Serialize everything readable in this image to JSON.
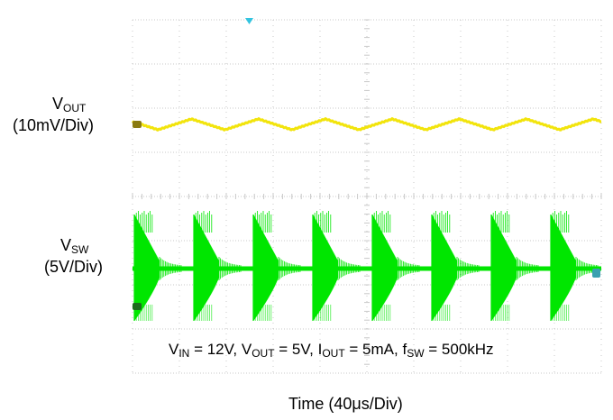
{
  "chart_data": {
    "type": "line",
    "grid": true,
    "traces": [
      {
        "name_main": "V",
        "name_sub": "OUT",
        "scale": "(10mV/Div)",
        "color": "#f2e40c",
        "waveform": "triangular ripple",
        "ripple_periods": 7
      },
      {
        "name_main": "V",
        "name_sub": "SW",
        "scale": "(5V/Div)",
        "color": "#00e600",
        "waveform": "burst switching",
        "bursts": 8
      }
    ],
    "conditions": [
      {
        "main": "V",
        "sub": "IN",
        "rest": " = 12V, "
      },
      {
        "main": "V",
        "sub": "OUT",
        "rest": " = 5V, "
      },
      {
        "main": "I",
        "sub": "OUT",
        "rest": " = 5mA, "
      },
      {
        "main": "f",
        "sub": "SW",
        "rest": " = 500kHz"
      }
    ],
    "xlabel": "Time (40μs/Div)"
  },
  "colors": {
    "grid": "#c8c8c8",
    "trigger_marker": "#33c4e0",
    "ch1_marker": "#8a7a10",
    "ch2_marker": "#1d6b1d",
    "ch2_marker_right": "#3aa0b0"
  }
}
